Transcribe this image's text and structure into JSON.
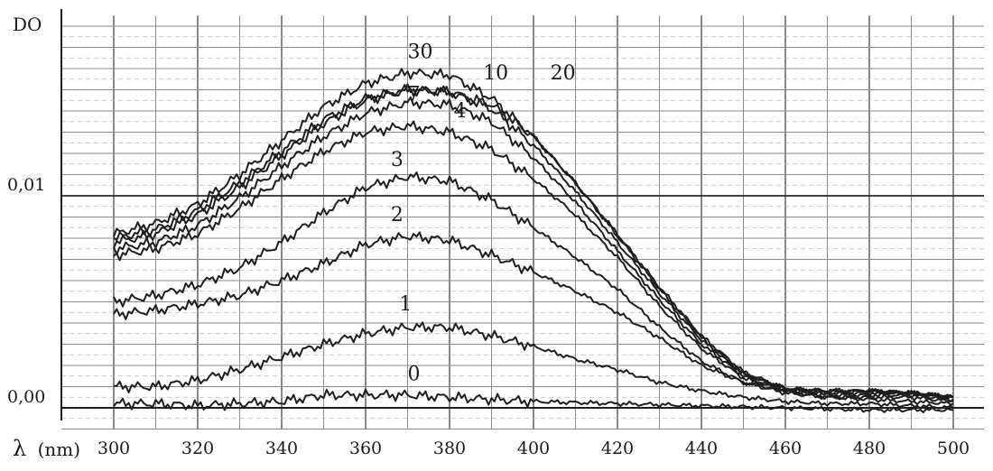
{
  "chart_data": {
    "type": "line",
    "ylabel": "DO",
    "xlabel_symbol": "λ",
    "xlabel_unit": "(nm)",
    "xlim": [
      300,
      500
    ],
    "ylim": [
      -0.001,
      0.0185
    ],
    "x_ticks": [
      300,
      320,
      340,
      360,
      380,
      400,
      420,
      440,
      460,
      480,
      500
    ],
    "x_tick_labels": [
      "300",
      "320",
      "340",
      "360",
      "380",
      "400",
      "420",
      "440",
      "460",
      "480",
      "500"
    ],
    "y_ticks": [
      0,
      0.01
    ],
    "y_tick_labels": [
      "0,00",
      "0,01"
    ],
    "grid": true,
    "line_color": "#1e1e1e",
    "series": [
      {
        "name": "0",
        "label_at": [
          370,
          0.0013
        ],
        "x": [
          300,
          310,
          320,
          330,
          340,
          350,
          360,
          370,
          380,
          390,
          400,
          420,
          440,
          460,
          480,
          500
        ],
        "y": [
          0.0002,
          0.0002,
          0.0001,
          0.0002,
          0.0003,
          0.0006,
          0.0006,
          0.0006,
          0.0005,
          0.0004,
          0.0003,
          0.0002,
          0.0001,
          0.0,
          -0.0001,
          -0.0001
        ]
      },
      {
        "name": "1",
        "label_at": [
          368,
          0.0046
        ],
        "x": [
          300,
          310,
          320,
          330,
          340,
          350,
          360,
          370,
          380,
          390,
          400,
          410,
          420,
          430,
          440,
          450,
          460,
          470,
          480,
          490,
          500
        ],
        "y": [
          0.001,
          0.001,
          0.0013,
          0.0018,
          0.0024,
          0.003,
          0.0035,
          0.0038,
          0.0038,
          0.0034,
          0.0029,
          0.0023,
          0.0018,
          0.0012,
          0.0008,
          0.0005,
          0.0003,
          0.0002,
          0.0002,
          0.0001,
          0.0
        ]
      },
      {
        "name": "2",
        "label_at": [
          366,
          0.0088
        ],
        "x": [
          300,
          310,
          320,
          330,
          340,
          350,
          360,
          370,
          380,
          390,
          400,
          410,
          420,
          430,
          440,
          450,
          460,
          470,
          480,
          490,
          500
        ],
        "y": [
          0.0044,
          0.0046,
          0.0049,
          0.0053,
          0.006,
          0.0068,
          0.0077,
          0.0081,
          0.0079,
          0.0072,
          0.0064,
          0.0055,
          0.0045,
          0.0033,
          0.002,
          0.0012,
          0.0008,
          0.0005,
          0.0004,
          0.0003,
          0.0002
        ]
      },
      {
        "name": "3",
        "label_at": [
          366,
          0.0114
        ],
        "x": [
          300,
          310,
          320,
          330,
          340,
          350,
          360,
          370,
          380,
          390,
          400,
          410,
          420,
          430,
          440,
          450,
          460,
          470,
          480,
          490,
          500
        ],
        "y": [
          0.005,
          0.0053,
          0.0058,
          0.0066,
          0.0078,
          0.0092,
          0.0104,
          0.0109,
          0.0107,
          0.0098,
          0.0085,
          0.0071,
          0.0056,
          0.0038,
          0.0022,
          0.0012,
          0.0007,
          0.0005,
          0.0005,
          0.0005,
          0.0003
        ]
      },
      {
        "name": "4",
        "label_at": [
          381,
          0.0137
        ],
        "x": [
          300,
          310,
          320,
          330,
          340,
          350,
          360,
          370,
          380,
          390,
          400,
          410,
          420,
          430,
          440,
          450,
          460,
          470,
          480,
          490,
          500
        ],
        "y": [
          0.0072,
          0.0075,
          0.0082,
          0.0094,
          0.0108,
          0.0121,
          0.013,
          0.0133,
          0.013,
          0.0122,
          0.0108,
          0.0091,
          0.0071,
          0.0048,
          0.0028,
          0.0014,
          0.0008,
          0.0006,
          0.0006,
          0.0006,
          0.0004
        ]
      },
      {
        "name": "7",
        "label_at": [
          370,
          0.0145
        ],
        "x": [
          300,
          310,
          320,
          330,
          340,
          350,
          360,
          370,
          380,
          390,
          400,
          410,
          420,
          430,
          440,
          450,
          460,
          470,
          480,
          490,
          500
        ],
        "y": [
          0.0075,
          0.0078,
          0.0086,
          0.0099,
          0.0114,
          0.0128,
          0.0139,
          0.0144,
          0.0143,
          0.0135,
          0.0118,
          0.0097,
          0.0074,
          0.0051,
          0.003,
          0.0015,
          0.0008,
          0.0007,
          0.0007,
          0.0007,
          0.0005
        ]
      },
      {
        "name": "10",
        "label_at": [
          388,
          0.0155
        ],
        "x": [
          300,
          310,
          320,
          330,
          340,
          350,
          360,
          370,
          380,
          390,
          400,
          410,
          420,
          430,
          440,
          450,
          460,
          470,
          480,
          490,
          500
        ],
        "y": [
          0.0078,
          0.0082,
          0.0091,
          0.0104,
          0.0119,
          0.0134,
          0.0145,
          0.015,
          0.0149,
          0.0141,
          0.0124,
          0.0102,
          0.0078,
          0.0054,
          0.0032,
          0.0016,
          0.0009,
          0.0007,
          0.0008,
          0.0007,
          0.0005
        ]
      },
      {
        "name": "20",
        "label_at": [
          404,
          0.0155
        ],
        "x": [
          300,
          310,
          320,
          330,
          340,
          350,
          360,
          370,
          380,
          390,
          400,
          410,
          420,
          430,
          440,
          450,
          460,
          470,
          480,
          490,
          500
        ],
        "y": [
          0.008,
          0.0084,
          0.0093,
          0.0106,
          0.0121,
          0.0136,
          0.0146,
          0.015,
          0.0149,
          0.0143,
          0.0128,
          0.0106,
          0.0082,
          0.0057,
          0.0034,
          0.0017,
          0.0009,
          0.0008,
          0.0008,
          0.0007,
          0.0005
        ]
      },
      {
        "name": "30",
        "label_at": [
          370,
          0.0165
        ],
        "x": [
          300,
          310,
          320,
          330,
          340,
          350,
          360,
          370,
          380,
          390,
          400,
          410,
          420,
          430,
          440,
          450,
          460,
          470,
          480,
          490,
          500
        ],
        "y": [
          0.0082,
          0.0087,
          0.0096,
          0.011,
          0.0126,
          0.0142,
          0.0153,
          0.0158,
          0.0157,
          0.0146,
          0.0128,
          0.0106,
          0.0081,
          0.0056,
          0.0033,
          0.0016,
          0.0009,
          0.0008,
          0.0008,
          0.0007,
          0.0005
        ]
      }
    ]
  }
}
